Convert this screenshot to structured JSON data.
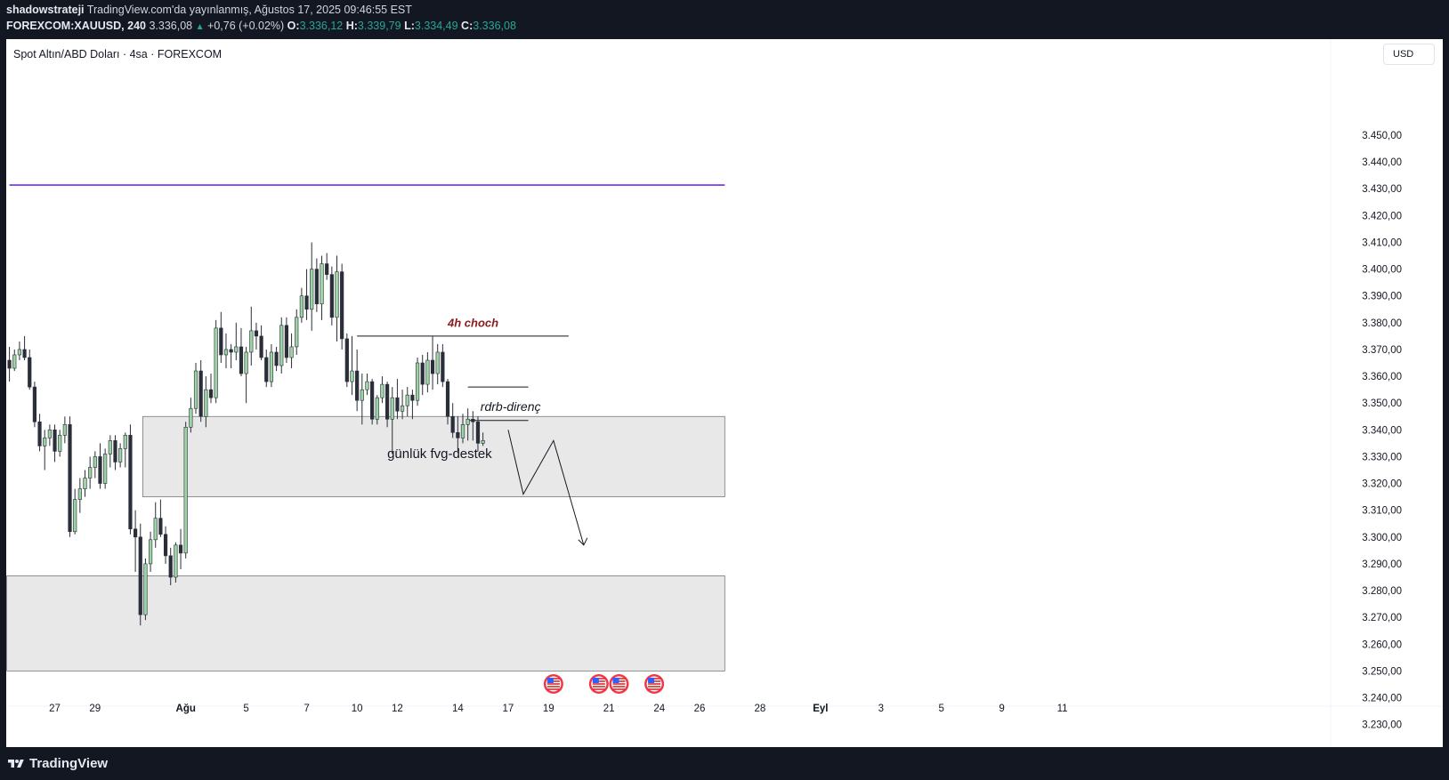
{
  "header": {
    "publisher": "shadowstrateji",
    "published_text": " TradingView.com'da yayınlanmış, Ağustos 17, 2025 09:46:55 EST",
    "symbol": "FOREXCOM:XAUUSD, 240",
    "last_price": "3.336,08",
    "change": "+0,76 (+0.02%)",
    "open_label": "O:",
    "open": "3.336,12",
    "high_label": "H:",
    "high": "3.339,79",
    "low_label": "L:",
    "low": "3.334,49",
    "close_label": "C:",
    "close": "3.336,08"
  },
  "chart": {
    "title": "Spot Altın/ABD Doları · 4sa · FOREXCOM",
    "currency": "USD",
    "colors": {
      "up": "#9dd4a4",
      "down": "#2a2e39",
      "wick": "#2a2e39",
      "resistance_line": "#6a2ff0",
      "annotation_red": "#8b1a1a",
      "zone_fill": "#e8e8e8",
      "zone_border": "#787878"
    }
  },
  "chart_data": {
    "type": "candlestick",
    "symbol": "FOREXCOM:XAUUSD",
    "timeframe": "4sa",
    "currency": "USD",
    "ylim": [
      3225,
      3460
    ],
    "y_ticks": [
      "3.450,00",
      "3.440,00",
      "3.430,00",
      "3.420,00",
      "3.410,00",
      "3.400,00",
      "3.390,00",
      "3.380,00",
      "3.370,00",
      "3.360,00",
      "3.350,00",
      "3.340,00",
      "3.330,00",
      "3.320,00",
      "3.310,00",
      "3.300,00",
      "3.290,00",
      "3.280,00",
      "3.270,00",
      "3.260,00",
      "3.250,00",
      "3.240,00",
      "3.230,00"
    ],
    "y_tick_values": [
      3450,
      3440,
      3430,
      3420,
      3410,
      3400,
      3390,
      3380,
      3370,
      3360,
      3350,
      3340,
      3330,
      3320,
      3310,
      3300,
      3290,
      3280,
      3270,
      3260,
      3250,
      3240,
      3230
    ],
    "x_ticks": [
      "27",
      "29",
      "Ağu",
      "5",
      "7",
      "10",
      "12",
      "14",
      "17",
      "19",
      "21",
      "24",
      "26",
      "28",
      "Eyl",
      "3",
      "5",
      "9",
      "11"
    ],
    "x_tick_bar_index": [
      9,
      17,
      35,
      47,
      59,
      69,
      77,
      89,
      99,
      107,
      119,
      129,
      137,
      149,
      161,
      173,
      185,
      197,
      209
    ],
    "candles": [
      [
        3366,
        3371,
        3358,
        3363
      ],
      [
        3363,
        3370,
        3362,
        3368
      ],
      [
        3368,
        3373,
        3366,
        3370
      ],
      [
        3370,
        3375,
        3366,
        3367
      ],
      [
        3367,
        3370,
        3355,
        3356
      ],
      [
        3356,
        3358,
        3341,
        3343
      ],
      [
        3343,
        3346,
        3332,
        3334
      ],
      [
        3334,
        3340,
        3325,
        3337
      ],
      [
        3337,
        3342,
        3334,
        3340
      ],
      [
        3340,
        3342,
        3328,
        3332
      ],
      [
        3332,
        3340,
        3330,
        3338
      ],
      [
        3338,
        3345,
        3335,
        3342
      ],
      [
        3342,
        3345,
        3300,
        3302
      ],
      [
        3302,
        3318,
        3301,
        3314
      ],
      [
        3314,
        3322,
        3309,
        3318
      ],
      [
        3318,
        3325,
        3315,
        3322
      ],
      [
        3322,
        3330,
        3318,
        3326
      ],
      [
        3326,
        3332,
        3322,
        3330
      ],
      [
        3330,
        3335,
        3318,
        3320
      ],
      [
        3320,
        3333,
        3318,
        3331
      ],
      [
        3331,
        3338,
        3326,
        3336
      ],
      [
        3336,
        3338,
        3325,
        3328
      ],
      [
        3328,
        3335,
        3326,
        3333
      ],
      [
        3333,
        3339,
        3326,
        3338
      ],
      [
        3338,
        3342,
        3301,
        3303
      ],
      [
        3303,
        3310,
        3287,
        3300
      ],
      [
        3300,
        3305,
        3267,
        3271
      ],
      [
        3271,
        3292,
        3269,
        3290
      ],
      [
        3290,
        3302,
        3287,
        3299
      ],
      [
        3299,
        3313,
        3296,
        3307
      ],
      [
        3307,
        3314,
        3300,
        3301
      ],
      [
        3301,
        3304,
        3290,
        3293
      ],
      [
        3293,
        3296,
        3282,
        3285
      ],
      [
        3285,
        3298,
        3283,
        3297
      ],
      [
        3297,
        3303,
        3288,
        3294
      ],
      [
        3294,
        3343,
        3292,
        3341
      ],
      [
        3341,
        3352,
        3339,
        3348
      ],
      [
        3348,
        3365,
        3346,
        3362
      ],
      [
        3362,
        3366,
        3343,
        3345
      ],
      [
        3345,
        3360,
        3341,
        3355
      ],
      [
        3355,
        3361,
        3350,
        3352
      ],
      [
        3352,
        3381,
        3350,
        3378
      ],
      [
        3378,
        3384,
        3365,
        3368
      ],
      [
        3368,
        3376,
        3363,
        3370
      ],
      [
        3370,
        3372,
        3363,
        3369
      ],
      [
        3369,
        3380,
        3366,
        3371
      ],
      [
        3371,
        3378,
        3360,
        3361
      ],
      [
        3361,
        3371,
        3350,
        3369
      ],
      [
        3369,
        3386,
        3364,
        3377
      ],
      [
        3377,
        3380,
        3370,
        3375
      ],
      [
        3375,
        3379,
        3366,
        3367
      ],
      [
        3367,
        3370,
        3356,
        3358
      ],
      [
        3358,
        3372,
        3356,
        3369
      ],
      [
        3369,
        3371,
        3362,
        3364
      ],
      [
        3364,
        3382,
        3361,
        3379
      ],
      [
        3379,
        3382,
        3365,
        3367
      ],
      [
        3367,
        3376,
        3363,
        3371
      ],
      [
        3371,
        3385,
        3368,
        3382
      ],
      [
        3382,
        3393,
        3380,
        3390
      ],
      [
        3390,
        3400,
        3381,
        3385
      ],
      [
        3385,
        3410,
        3377,
        3400
      ],
      [
        3400,
        3404,
        3384,
        3387
      ],
      [
        3387,
        3405,
        3381,
        3402
      ],
      [
        3402,
        3406,
        3396,
        3398
      ],
      [
        3398,
        3401,
        3379,
        3382
      ],
      [
        3382,
        3405,
        3373,
        3399
      ],
      [
        3399,
        3402,
        3370,
        3374
      ],
      [
        3374,
        3376,
        3356,
        3358
      ],
      [
        3358,
        3375,
        3353,
        3362
      ],
      [
        3362,
        3370,
        3347,
        3351
      ],
      [
        3351,
        3361,
        3342,
        3355
      ],
      [
        3355,
        3361,
        3353,
        3358
      ],
      [
        3358,
        3359,
        3342,
        3344
      ],
      [
        3344,
        3353,
        3342,
        3352
      ],
      [
        3352,
        3360,
        3350,
        3357
      ],
      [
        3357,
        3358,
        3341,
        3344
      ],
      [
        3344,
        3356,
        3331,
        3352
      ],
      [
        3352,
        3359,
        3344,
        3347
      ],
      [
        3347,
        3355,
        3344,
        3349
      ],
      [
        3349,
        3356,
        3345,
        3353
      ],
      [
        3353,
        3355,
        3344,
        3351
      ],
      [
        3351,
        3367,
        3349,
        3365
      ],
      [
        3365,
        3368,
        3353,
        3357
      ],
      [
        3357,
        3369,
        3354,
        3366
      ],
      [
        3366,
        3375,
        3355,
        3361
      ],
      [
        3361,
        3372,
        3357,
        3369
      ],
      [
        3369,
        3372,
        3356,
        3358
      ],
      [
        3358,
        3359,
        3342,
        3345
      ],
      [
        3345,
        3350,
        3337,
        3339
      ],
      [
        3339,
        3345,
        3332,
        3337
      ],
      [
        3337,
        3346,
        3335,
        3342
      ],
      [
        3342,
        3348,
        3336,
        3344
      ],
      [
        3344,
        3347,
        3336,
        3343
      ],
      [
        3343,
        3345,
        3332,
        3335
      ],
      [
        3335,
        3339,
        3334,
        3336
      ]
    ],
    "levels": [
      {
        "price": 3431.4,
        "x_from_bar": 0,
        "x_to_bar": 142,
        "color": "#6a2ff0"
      },
      {
        "price": 3375,
        "x_from_bar": 69,
        "x_to_bar": 111
      },
      {
        "price": 3356,
        "x_from_bar": 91,
        "x_to_bar": 103
      },
      {
        "price": 3343.5,
        "x_from_bar": 91,
        "x_to_bar": 103
      }
    ],
    "zones": [
      {
        "label": "günlük fvg-destek",
        "top": 3345.0,
        "bottom": 3315.0,
        "x_from_bar": 27,
        "x_to_bar": 142
      },
      {
        "top": 3285.5,
        "bottom": 3250.0,
        "x_from_bar": 0,
        "x_to_bar": 142
      }
    ],
    "annotations": [
      "4h choch",
      "rdrb-direnç",
      "günlük fvg-destek"
    ],
    "projection_path": [
      [
        99,
        3340
      ],
      [
        102,
        3316
      ],
      [
        108,
        3336
      ],
      [
        114,
        3297
      ]
    ],
    "event_icons": [
      108,
      117,
      121,
      128
    ]
  },
  "labels": {
    "choch": "4h choch",
    "rdrb": "rdrb-direnç",
    "fvg": "günlük fvg-destek"
  },
  "footer": {
    "brand": "TradingView"
  }
}
